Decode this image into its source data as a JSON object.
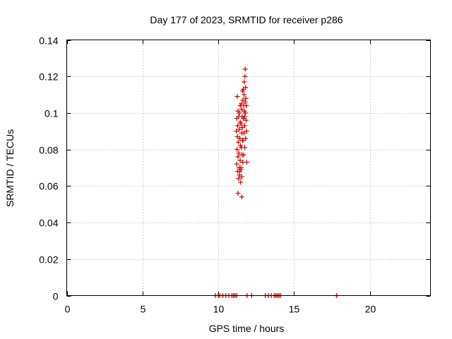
{
  "chart_data": {
    "type": "scatter",
    "title": "Day 177 of 2023, SRMTID for receiver p286",
    "xlabel": "GPS time / hours",
    "ylabel": "SRMTID / TECUs",
    "xlim": [
      0,
      24
    ],
    "ylim": [
      0,
      0.14
    ],
    "xticks": [
      0,
      5,
      10,
      15,
      20
    ],
    "xtick_labels": [
      "0",
      "5",
      "10",
      "15",
      "20"
    ],
    "yticks": [
      0,
      0.02,
      0.04,
      0.06,
      0.08,
      0.1,
      0.12,
      0.14
    ],
    "ytick_labels": [
      "0",
      "0.02",
      "0.04",
      "0.06",
      "0.08",
      "0.1",
      "0.12",
      "0.14"
    ],
    "grid": true,
    "marker": "+",
    "color": "#cc0000",
    "series": [
      {
        "name": "SRMTID",
        "points": [
          [
            11.25,
            0.109
          ],
          [
            11.3,
            0.101
          ],
          [
            11.22,
            0.097
          ],
          [
            11.28,
            0.093
          ],
          [
            11.2,
            0.09
          ],
          [
            11.26,
            0.087
          ],
          [
            11.32,
            0.084
          ],
          [
            11.24,
            0.08
          ],
          [
            11.3,
            0.076
          ],
          [
            11.22,
            0.072
          ],
          [
            11.28,
            0.068
          ],
          [
            11.34,
            0.064
          ],
          [
            11.3,
            0.056
          ],
          [
            11.55,
            0.054
          ],
          [
            11.4,
            0.1
          ],
          [
            11.45,
            0.095
          ],
          [
            11.38,
            0.091
          ],
          [
            11.42,
            0.086
          ],
          [
            11.47,
            0.082
          ],
          [
            11.36,
            0.078
          ],
          [
            11.44,
            0.074
          ],
          [
            11.5,
            0.07
          ],
          [
            11.4,
            0.066
          ],
          [
            11.48,
            0.062
          ],
          [
            11.52,
            0.105
          ],
          [
            11.55,
            0.102
          ],
          [
            11.58,
            0.098
          ],
          [
            11.5,
            0.094
          ],
          [
            11.56,
            0.089
          ],
          [
            11.6,
            0.085
          ],
          [
            11.53,
            0.081
          ],
          [
            11.57,
            0.077
          ],
          [
            11.62,
            0.073
          ],
          [
            11.5,
            0.069
          ],
          [
            11.55,
            0.065
          ],
          [
            11.65,
            0.113
          ],
          [
            11.7,
            0.11
          ],
          [
            11.62,
            0.107
          ],
          [
            11.68,
            0.104
          ],
          [
            11.72,
            0.101
          ],
          [
            11.66,
            0.097
          ],
          [
            11.74,
            0.093
          ],
          [
            11.69,
            0.089
          ],
          [
            11.63,
            0.085
          ],
          [
            11.75,
            0.081
          ],
          [
            11.67,
            0.077
          ],
          [
            11.71,
            0.117
          ],
          [
            11.78,
            0.124
          ],
          [
            11.76,
            0.12
          ],
          [
            11.8,
            0.114
          ],
          [
            11.82,
            0.108
          ],
          [
            11.77,
            0.106
          ],
          [
            11.85,
            0.104
          ],
          [
            11.79,
            0.1
          ],
          [
            11.83,
            0.096
          ],
          [
            11.86,
            0.09
          ],
          [
            11.8,
            0.086
          ],
          [
            11.88,
            0.073
          ],
          [
            11.6,
            0.112
          ],
          [
            11.45,
            0.104
          ],
          [
            11.35,
            0.098
          ],
          [
            11.38,
            0.07
          ],
          [
            11.42,
            0.068
          ],
          [
            11.58,
            0.092
          ],
          [
            11.73,
            0.098
          ],
          [
            9.8,
            0
          ],
          [
            10.0,
            0
          ],
          [
            10.1,
            0
          ],
          [
            10.3,
            0
          ],
          [
            10.5,
            0
          ],
          [
            10.7,
            0
          ],
          [
            10.9,
            0
          ],
          [
            11.0,
            0
          ],
          [
            11.1,
            0
          ],
          [
            11.2,
            0
          ],
          [
            11.9,
            0
          ],
          [
            12.2,
            0
          ],
          [
            13.1,
            0
          ],
          [
            13.3,
            0
          ],
          [
            13.5,
            0
          ],
          [
            13.7,
            0
          ],
          [
            13.8,
            0
          ],
          [
            13.9,
            0
          ],
          [
            14.0,
            0
          ],
          [
            14.1,
            0
          ],
          [
            17.8,
            0
          ]
        ]
      }
    ]
  }
}
